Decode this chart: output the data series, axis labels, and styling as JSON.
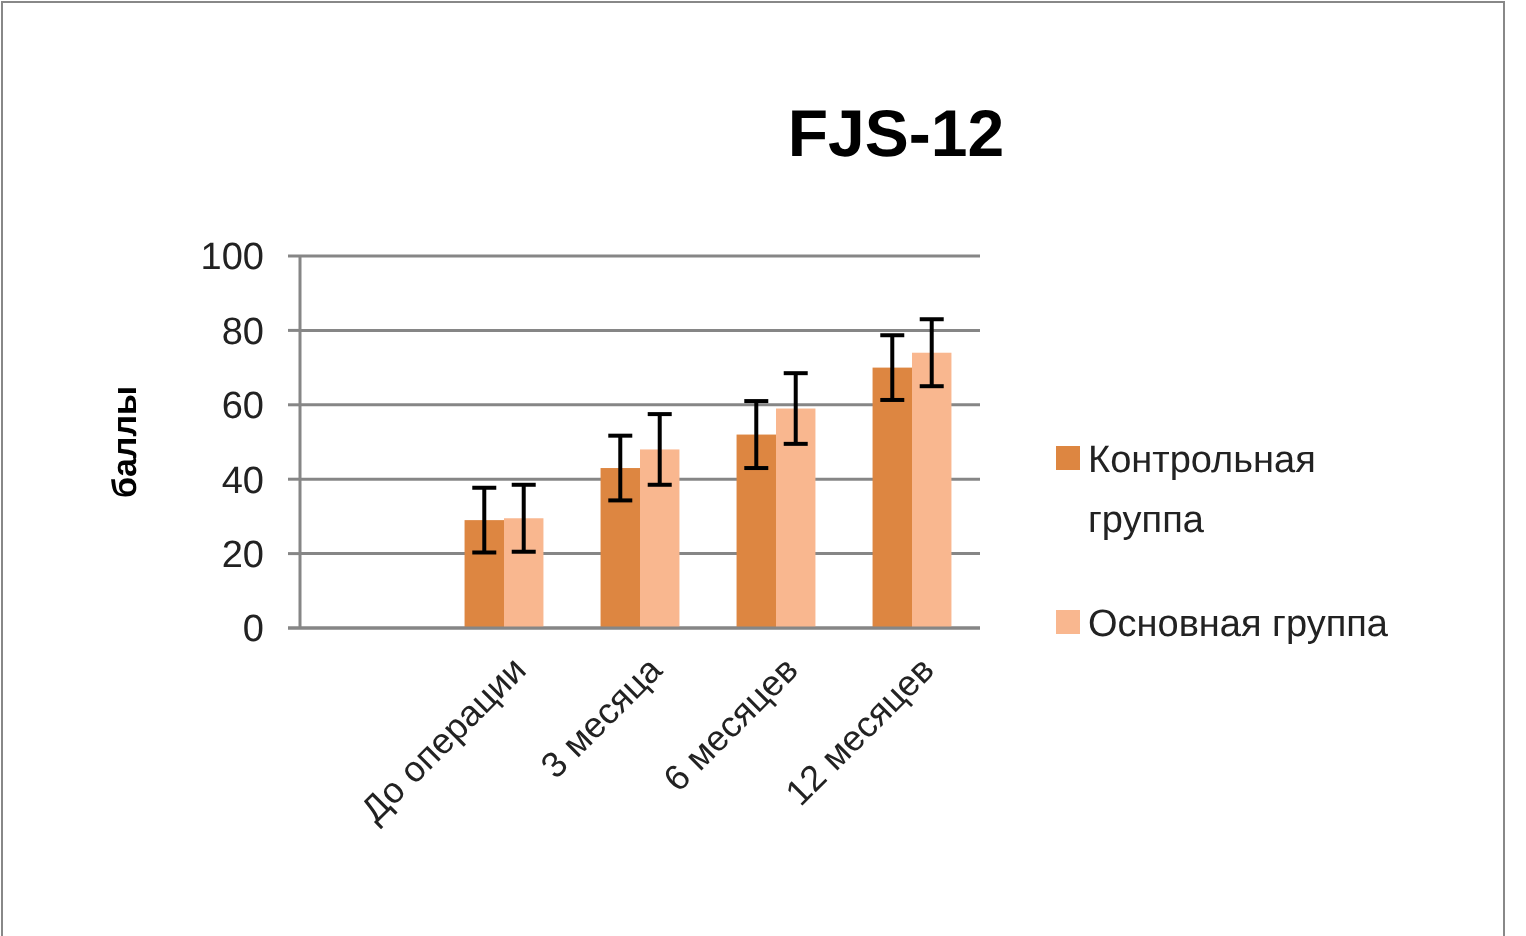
{
  "chart_data": {
    "type": "bar",
    "title": "FJS-12",
    "ylabel": "баллы",
    "categories": [
      null,
      "До операции",
      "3 месяца",
      "6 месяцев",
      "12 месяцев"
    ],
    "series": [
      {
        "name": "Контрольная группа",
        "color": "#dd8641",
        "values": [
          null,
          29,
          43,
          52,
          70
        ],
        "errors": [
          null,
          8.7,
          8.7,
          9,
          8.7
        ]
      },
      {
        "name": "Основная группа",
        "color": "#f9b78f",
        "values": [
          null,
          29.5,
          48,
          59,
          74
        ],
        "errors": [
          null,
          9,
          9.5,
          9.5,
          9
        ]
      }
    ],
    "ylim": [
      0,
      100
    ],
    "yticks": [
      0,
      20,
      40,
      60,
      80,
      100
    ],
    "grid": "y",
    "legend": "right"
  }
}
